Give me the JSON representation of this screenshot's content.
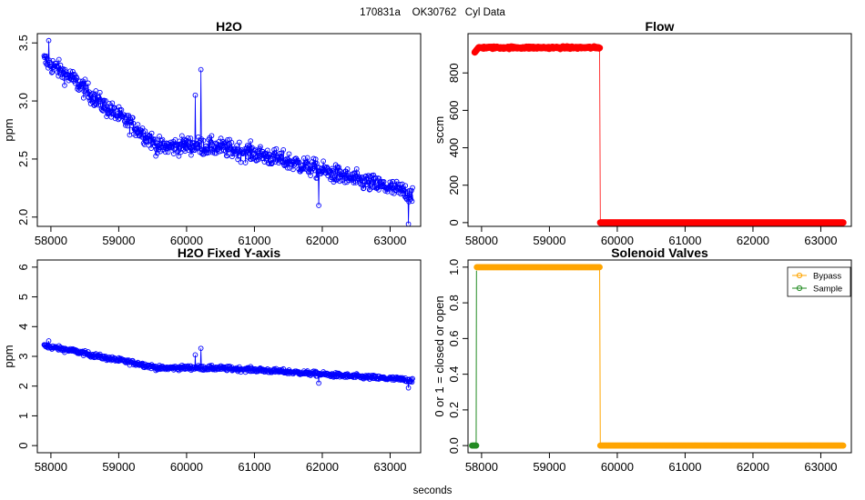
{
  "figure_title": "170831a    OK30762   Cyl Data",
  "shared_xlabel": "seconds",
  "chart_data": [
    {
      "type": "scatter",
      "title": "H2O",
      "xlabel": "",
      "ylabel": "ppm",
      "xlim": [
        57800,
        63450
      ],
      "ylim": [
        1.92,
        3.58
      ],
      "xticks": [
        58000,
        59000,
        60000,
        61000,
        62000,
        63000
      ],
      "yticks": [
        2.0,
        2.5,
        3.0,
        3.5
      ],
      "ytick_labels": [
        "2.0",
        "2.5",
        "3.0",
        "3.5"
      ],
      "series": [
        {
          "name": "H2O",
          "color": "#0000ff",
          "style": "points-with-connecting-line",
          "x_start": 57900,
          "x_end": 63330,
          "n_points": 720,
          "trend": [
            [
              57900,
              3.35
            ],
            [
              58300,
              3.2
            ],
            [
              58800,
              2.95
            ],
            [
              59300,
              2.75
            ],
            [
              59600,
              2.6
            ],
            [
              60000,
              2.62
            ],
            [
              60500,
              2.6
            ],
            [
              61000,
              2.55
            ],
            [
              61500,
              2.48
            ],
            [
              62000,
              2.4
            ],
            [
              62500,
              2.32
            ],
            [
              63000,
              2.25
            ],
            [
              63330,
              2.2
            ]
          ],
          "noise": 0.1,
          "extremes": [
            [
              57970,
              3.52
            ],
            [
              60210,
              3.27
            ],
            [
              60130,
              3.05
            ],
            [
              63270,
              1.94
            ],
            [
              61950,
              2.1
            ]
          ]
        }
      ]
    },
    {
      "type": "scatter",
      "title": "Flow",
      "xlabel": "",
      "ylabel": "sccm",
      "xlim": [
        57800,
        63450
      ],
      "ylim": [
        -20,
        1010
      ],
      "xticks": [
        58000,
        59000,
        60000,
        61000,
        62000,
        63000
      ],
      "yticks": [
        0,
        200,
        400,
        600,
        800
      ],
      "ytick_labels": [
        "0",
        "200",
        "400",
        "600",
        "800"
      ],
      "series": [
        {
          "name": "Flow",
          "color": "#ff0000",
          "style": "points-with-connecting-line",
          "segments": [
            {
              "x_start": 57900,
              "x_end": 59740,
              "value": 935,
              "start_value": 910,
              "noise": 8
            },
            {
              "x_start": 59750,
              "x_end": 63330,
              "value": 0,
              "noise": 0
            }
          ]
        }
      ]
    },
    {
      "type": "scatter",
      "title": "H2O Fixed Y-axis",
      "xlabel": "",
      "ylabel": "ppm",
      "xlim": [
        57800,
        63450
      ],
      "ylim": [
        -0.24,
        6.24
      ],
      "xticks": [
        58000,
        59000,
        60000,
        61000,
        62000,
        63000
      ],
      "yticks": [
        0,
        1,
        2,
        3,
        4,
        5,
        6
      ],
      "ytick_labels": [
        "0",
        "1",
        "2",
        "3",
        "4",
        "5",
        "6"
      ],
      "series": [
        {
          "name": "H2O",
          "color": "#0000ff",
          "style": "points-with-connecting-line",
          "same_as": "H2O"
        }
      ]
    },
    {
      "type": "line",
      "title": "Solenoid Valves",
      "xlabel": "",
      "ylabel": "0 or 1 = closed or open",
      "xlim": [
        57800,
        63450
      ],
      "ylim": [
        -0.04,
        1.04
      ],
      "xticks": [
        58000,
        59000,
        60000,
        61000,
        62000,
        63000
      ],
      "yticks": [
        0.0,
        0.2,
        0.4,
        0.6,
        0.8,
        1.0
      ],
      "ytick_labels": [
        "0.0",
        "0.2",
        "0.4",
        "0.6",
        "0.8",
        "1.0"
      ],
      "legend": {
        "placement": "top-right",
        "entries": [
          "Bypass",
          "Sample"
        ]
      },
      "series": [
        {
          "name": "Bypass",
          "color": "#ffa500",
          "points": [
            [
              57930,
              1
            ],
            [
              59740,
              1
            ],
            [
              59750,
              0
            ],
            [
              63330,
              0
            ]
          ]
        },
        {
          "name": "Sample",
          "color": "#228b22",
          "points": [
            [
              57860,
              0
            ],
            [
              57920,
              0
            ],
            [
              57925,
              0.98
            ]
          ]
        }
      ]
    }
  ]
}
